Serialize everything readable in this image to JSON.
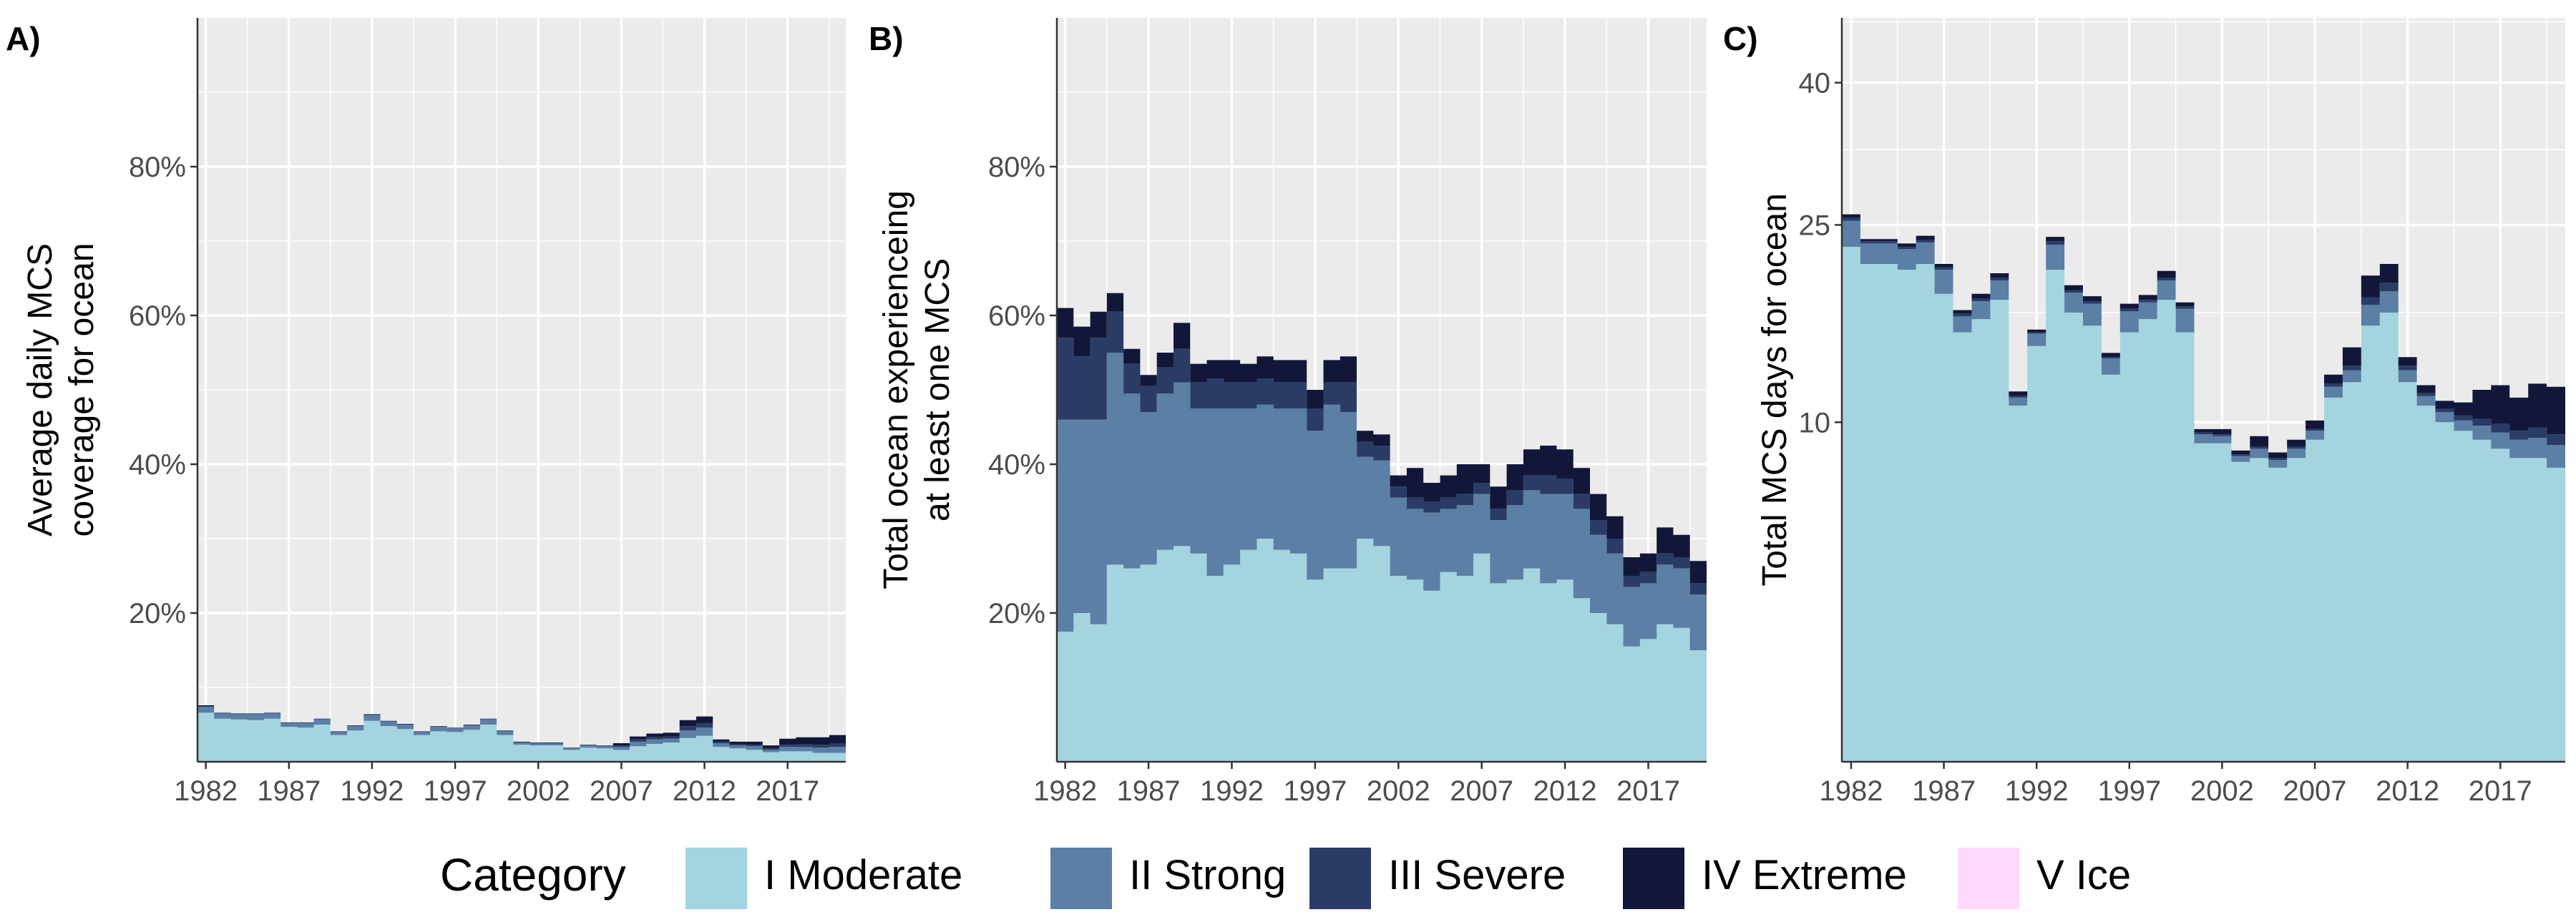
{
  "legend": {
    "title": "Category",
    "items": [
      {
        "label": "I Moderate",
        "color": "#A4D4DF"
      },
      {
        "label": "II Strong",
        "color": "#5B7FA5"
      },
      {
        "label": "III Severe",
        "color": "#2A3C66"
      },
      {
        "label": "IV Extreme",
        "color": "#12173A"
      },
      {
        "label": "V Ice",
        "color": "#FFD8FC"
      }
    ]
  },
  "chart_data": [
    {
      "type": "area",
      "stacked": true,
      "panel": "A)",
      "xlabel": "",
      "ylabel_lines": [
        "Average daily MCS",
        "coverage for ocean"
      ],
      "x": [
        1982,
        1983,
        1984,
        1985,
        1986,
        1987,
        1988,
        1989,
        1990,
        1991,
        1992,
        1993,
        1994,
        1995,
        1996,
        1997,
        1998,
        1999,
        2000,
        2001,
        2002,
        2003,
        2004,
        2005,
        2006,
        2007,
        2008,
        2009,
        2010,
        2011,
        2012,
        2013,
        2014,
        2015,
        2016,
        2017,
        2018,
        2019,
        2020
      ],
      "x_ticks": [
        "1982",
        "1987",
        "1992",
        "1997",
        "2002",
        "2007",
        "2012",
        "2017"
      ],
      "y_ticks": [
        "20%",
        "40%",
        "60%",
        "80%"
      ],
      "y_tick_values": [
        20,
        40,
        60,
        80
      ],
      "ylim": [
        0,
        100
      ],
      "grid": true,
      "series": [
        {
          "name": "I Moderate",
          "values": [
            6.6,
            5.8,
            5.7,
            5.6,
            5.8,
            4.7,
            4.6,
            5.0,
            3.6,
            4.2,
            5.5,
            4.8,
            4.4,
            3.6,
            4.1,
            4.0,
            4.3,
            5.0,
            3.6,
            2.3,
            2.2,
            2.2,
            1.6,
            1.9,
            1.8,
            1.6,
            2.1,
            2.4,
            2.6,
            3.2,
            3.5,
            2.0,
            1.8,
            1.6,
            1.3,
            1.4,
            1.4,
            1.2,
            1.2
          ]
        },
        {
          "name": "II Strong",
          "values": [
            0.8,
            0.7,
            0.7,
            0.8,
            0.7,
            0.5,
            0.6,
            0.7,
            0.4,
            0.6,
            0.8,
            0.6,
            0.6,
            0.4,
            0.6,
            0.5,
            0.6,
            0.7,
            0.5,
            0.3,
            0.3,
            0.3,
            0.2,
            0.3,
            0.3,
            0.4,
            0.6,
            0.6,
            0.5,
            1.0,
            1.1,
            0.5,
            0.4,
            0.5,
            0.3,
            0.6,
            0.6,
            0.7,
            0.8
          ]
        },
        {
          "name": "III Severe",
          "values": [
            0.1,
            0.1,
            0.1,
            0.1,
            0.1,
            0.1,
            0.1,
            0.1,
            0.1,
            0.1,
            0.1,
            0.1,
            0.1,
            0.1,
            0.1,
            0.1,
            0.1,
            0.1,
            0.1,
            0.1,
            0.1,
            0.1,
            0.1,
            0.1,
            0.1,
            0.2,
            0.3,
            0.3,
            0.3,
            0.6,
            0.6,
            0.2,
            0.2,
            0.2,
            0.2,
            0.3,
            0.4,
            0.4,
            0.5
          ]
        },
        {
          "name": "IV Extreme",
          "values": [
            0.1,
            0.0,
            0.0,
            0.0,
            0.0,
            0.0,
            0.0,
            0.0,
            0.0,
            0.0,
            0.0,
            0.0,
            0.0,
            0.0,
            0.0,
            0.0,
            0.0,
            0.0,
            0.0,
            0.0,
            0.0,
            0.0,
            0.0,
            0.0,
            0.0,
            0.3,
            0.4,
            0.5,
            0.5,
            0.8,
            0.9,
            0.3,
            0.3,
            0.4,
            0.4,
            0.8,
            0.9,
            1.0,
            1.1
          ]
        },
        {
          "name": "V Ice",
          "values": [
            0,
            0,
            0,
            0,
            0,
            0,
            0,
            0,
            0,
            0,
            0,
            0,
            0,
            0,
            0,
            0,
            0,
            0,
            0,
            0,
            0,
            0,
            0,
            0,
            0,
            0,
            0,
            0,
            0,
            0,
            0,
            0,
            0,
            0,
            0,
            0,
            0,
            0,
            0
          ]
        }
      ]
    },
    {
      "type": "area",
      "stacked": true,
      "panel": "B)",
      "xlabel": "",
      "ylabel_lines": [
        "Total ocean experienceing",
        "at least one MCS"
      ],
      "x": [
        1982,
        1983,
        1984,
        1985,
        1986,
        1987,
        1988,
        1989,
        1990,
        1991,
        1992,
        1993,
        1994,
        1995,
        1996,
        1997,
        1998,
        1999,
        2000,
        2001,
        2002,
        2003,
        2004,
        2005,
        2006,
        2007,
        2008,
        2009,
        2010,
        2011,
        2012,
        2013,
        2014,
        2015,
        2016,
        2017,
        2018,
        2019,
        2020
      ],
      "x_ticks": [
        "1982",
        "1987",
        "1992",
        "1997",
        "2002",
        "2007",
        "2012",
        "2017"
      ],
      "y_ticks": [
        "20%",
        "40%",
        "60%",
        "80%"
      ],
      "y_tick_values": [
        20,
        40,
        60,
        80
      ],
      "ylim": [
        0,
        100
      ],
      "grid": true,
      "series": [
        {
          "name": "I Moderate",
          "values": [
            17.5,
            20.0,
            18.5,
            26.5,
            26.0,
            26.5,
            28.5,
            29.0,
            28.0,
            25.0,
            26.5,
            28.5,
            30.0,
            28.5,
            28.0,
            24.5,
            26.0,
            26.0,
            30.0,
            29.0,
            25.0,
            24.5,
            23.0,
            25.5,
            25.0,
            28.0,
            24.0,
            24.5,
            26.0,
            24.0,
            24.5,
            22.0,
            20.0,
            18.5,
            15.5,
            16.5,
            18.5,
            18.0,
            15.0
          ]
        },
        {
          "name": "II Strong",
          "values": [
            28.5,
            26.0,
            27.5,
            28.5,
            23.5,
            20.5,
            21.0,
            22.0,
            19.5,
            22.5,
            21.0,
            19.0,
            18.0,
            19.0,
            19.5,
            20.0,
            22.0,
            21.0,
            11.0,
            11.5,
            10.5,
            9.5,
            10.5,
            8.5,
            9.5,
            8.0,
            8.5,
            10.0,
            10.5,
            12.0,
            11.5,
            12.0,
            10.5,
            9.5,
            8.0,
            7.5,
            8.0,
            8.0,
            7.5
          ]
        },
        {
          "name": "III Severe",
          "values": [
            11.0,
            8.5,
            11.0,
            5.5,
            4.0,
            3.5,
            3.5,
            4.5,
            3.5,
            4.0,
            3.5,
            3.5,
            3.5,
            3.5,
            3.5,
            3.0,
            3.0,
            4.0,
            2.0,
            2.0,
            1.5,
            1.5,
            1.5,
            1.5,
            1.5,
            1.5,
            1.5,
            2.0,
            2.0,
            2.5,
            2.0,
            2.0,
            2.0,
            2.0,
            1.5,
            1.5,
            1.5,
            1.5,
            1.5
          ]
        },
        {
          "name": "IV Extreme",
          "values": [
            4.0,
            4.0,
            3.5,
            2.5,
            2.0,
            1.5,
            2.0,
            3.5,
            2.5,
            2.5,
            3.0,
            2.5,
            3.0,
            3.0,
            3.0,
            2.5,
            3.0,
            3.5,
            1.5,
            1.5,
            1.5,
            4.0,
            2.5,
            3.0,
            4.0,
            2.5,
            3.0,
            3.5,
            3.5,
            4.0,
            4.0,
            3.5,
            3.5,
            3.0,
            2.5,
            2.5,
            3.5,
            3.0,
            3.0
          ]
        },
        {
          "name": "V Ice",
          "values": [
            0,
            0,
            0,
            0,
            0,
            0,
            0,
            0,
            0,
            0,
            0,
            0,
            0,
            0,
            0,
            0,
            0,
            0,
            0,
            0,
            0,
            0,
            0,
            0,
            0,
            0,
            0,
            0,
            0,
            0,
            0,
            0,
            0,
            0,
            0,
            0,
            0,
            0,
            0
          ]
        }
      ]
    },
    {
      "type": "area",
      "stacked": true,
      "panel": "C)",
      "xlabel": "",
      "ylabel_lines": [
        "Total MCS days for ocean"
      ],
      "x": [
        1982,
        1983,
        1984,
        1985,
        1986,
        1987,
        1988,
        1989,
        1990,
        1991,
        1992,
        1993,
        1994,
        1995,
        1996,
        1997,
        1998,
        1999,
        2000,
        2001,
        2002,
        2003,
        2004,
        2005,
        2006,
        2007,
        2008,
        2009,
        2010,
        2011,
        2012,
        2013,
        2014,
        2015,
        2016,
        2017,
        2018,
        2019,
        2020
      ],
      "x_ticks": [
        "1982",
        "1987",
        "1992",
        "1997",
        "2002",
        "2007",
        "2012",
        "2017"
      ],
      "y_ticks": [
        "10",
        "25",
        "40"
      ],
      "y_tick_values": [
        10,
        25,
        40
      ],
      "y_scale": "sqrt",
      "ylim": [
        0,
        48
      ],
      "grid": true,
      "series": [
        {
          "name": "I Moderate",
          "values": [
            23.0,
            21.5,
            21.5,
            21.0,
            21.5,
            19.0,
            16.0,
            17.0,
            18.5,
            11.0,
            15.0,
            21.0,
            17.5,
            16.5,
            13.0,
            16.0,
            17.0,
            18.5,
            16.0,
            8.8,
            8.8,
            7.8,
            8.0,
            7.5,
            8.0,
            9.0,
            11.5,
            12.5,
            16.5,
            17.5,
            12.5,
            11.0,
            10.0,
            9.5,
            9.0,
            8.5,
            8.0,
            8.0,
            7.5
          ]
        },
        {
          "name": "II Strong",
          "values": [
            2.4,
            1.8,
            1.8,
            1.8,
            1.9,
            2.0,
            1.2,
            1.4,
            1.6,
            0.5,
            0.9,
            2.2,
            1.6,
            1.7,
            1.1,
            1.6,
            1.3,
            1.6,
            1.8,
            0.5,
            0.4,
            0.3,
            0.5,
            0.4,
            0.5,
            0.5,
            0.7,
            0.8,
            1.6,
            1.7,
            0.8,
            0.6,
            0.6,
            0.6,
            0.8,
            0.9,
            1.0,
            1.1,
            1.2
          ]
        },
        {
          "name": "III Severe",
          "values": [
            0.3,
            0.2,
            0.2,
            0.2,
            0.2,
            0.2,
            0.2,
            0.2,
            0.2,
            0.1,
            0.1,
            0.3,
            0.2,
            0.2,
            0.1,
            0.2,
            0.2,
            0.2,
            0.2,
            0.1,
            0.1,
            0.1,
            0.1,
            0.1,
            0.1,
            0.1,
            0.2,
            0.3,
            0.6,
            0.7,
            0.3,
            0.2,
            0.2,
            0.3,
            0.4,
            0.5,
            0.5,
            0.6,
            0.6
          ]
        },
        {
          "name": "IV Extreme",
          "values": [
            0.3,
            0.2,
            0.2,
            0.3,
            0.4,
            0.3,
            0.3,
            0.4,
            0.4,
            0.3,
            0.2,
            0.4,
            0.4,
            0.4,
            0.3,
            0.4,
            0.4,
            0.6,
            0.3,
            0.2,
            0.3,
            0.2,
            0.6,
            0.3,
            0.4,
            0.5,
            0.6,
            1.3,
            1.8,
            1.6,
            0.6,
            0.5,
            0.5,
            0.8,
            1.8,
            2.4,
            2.0,
            2.7,
            2.9
          ]
        },
        {
          "name": "V Ice",
          "values": [
            0,
            0,
            0,
            0,
            0,
            0,
            0,
            0,
            0,
            0,
            0,
            0,
            0,
            0,
            0,
            0,
            0,
            0,
            0,
            0,
            0,
            0,
            0,
            0,
            0,
            0,
            0,
            0,
            0,
            0,
            0,
            0,
            0,
            0,
            0,
            0,
            0,
            0,
            0
          ]
        }
      ]
    }
  ]
}
